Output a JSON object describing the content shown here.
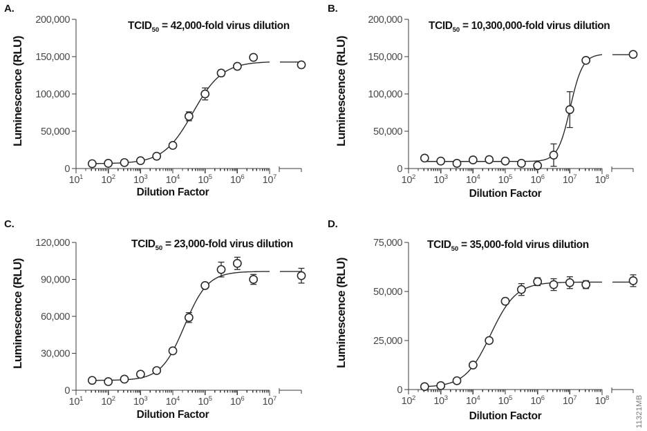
{
  "figure_id": "11321MB",
  "colors": {
    "axis": "#3a3a3c",
    "tick_text": "#48484a",
    "title_text": "#141414",
    "plot": "#2a2a2c",
    "marker_fill": "#ffffff",
    "figure_id_text": "#77787b"
  },
  "chart_data": [
    {
      "type": "scatter",
      "panel_label": "A.",
      "title": {
        "prefix": "TCID",
        "sub": "50",
        "rest": " = 42,000-fold virus dilution"
      },
      "xlabel": "Dilution Factor",
      "ylabel": "Luminescence (RLU)",
      "x_scale": "log",
      "x_tick_base": "10",
      "x_tick_exponents": [
        1,
        2,
        3,
        4,
        5,
        6,
        7
      ],
      "x_axis_break_after": true,
      "ylim": [
        0,
        200000
      ],
      "y_tick_values": [
        0,
        50000,
        100000,
        150000,
        200000
      ],
      "y_tick_labels": [
        "0",
        "50,000",
        "100,000",
        "150,000",
        "200,000"
      ],
      "points": [
        {
          "x": 31.6,
          "y": 6500,
          "e": 0
        },
        {
          "x": 100,
          "y": 7000,
          "e": 0
        },
        {
          "x": 316,
          "y": 8000,
          "e": 0
        },
        {
          "x": 1000,
          "y": 10500,
          "e": 0
        },
        {
          "x": 3162,
          "y": 16500,
          "e": 0
        },
        {
          "x": 10000,
          "y": 31000,
          "e": 0
        },
        {
          "x": 31623,
          "y": 70000,
          "e": 6000
        },
        {
          "x": 100000,
          "y": 100000,
          "e": 8000
        },
        {
          "x": 316228,
          "y": 128000,
          "e": 4000
        },
        {
          "x": 1000000,
          "y": 137000,
          "e": 0
        },
        {
          "x": 3162278,
          "y": 149000,
          "e": 0
        }
      ],
      "control_point": {
        "y": 139000,
        "e": 0
      },
      "curve_fit": {
        "model": "4PL",
        "bottom": 6500,
        "top": 143500,
        "ec50": 42000,
        "hill": 0.95
      }
    },
    {
      "type": "scatter",
      "panel_label": "B.",
      "title": {
        "prefix": "TCID",
        "sub": "50",
        "rest": " = 10,300,000-fold virus dilution"
      },
      "xlabel": "Dilution Factor",
      "ylabel": "Luminescence (RLU)",
      "x_scale": "log",
      "x_tick_base": "10",
      "x_tick_exponents": [
        2,
        3,
        4,
        5,
        6,
        7,
        8
      ],
      "x_axis_break_after": true,
      "ylim": [
        0,
        200000
      ],
      "y_tick_values": [
        0,
        50000,
        100000,
        150000,
        200000
      ],
      "y_tick_labels": [
        "0",
        "50,000",
        "100,000",
        "150,000",
        "200,000"
      ],
      "points": [
        {
          "x": 316,
          "y": 14000,
          "e": 0
        },
        {
          "x": 1000,
          "y": 10000,
          "e": 0
        },
        {
          "x": 3162,
          "y": 7000,
          "e": 0
        },
        {
          "x": 10000,
          "y": 11500,
          "e": 0
        },
        {
          "x": 31623,
          "y": 12000,
          "e": 0
        },
        {
          "x": 100000,
          "y": 10000,
          "e": 0
        },
        {
          "x": 316228,
          "y": 7000,
          "e": 0
        },
        {
          "x": 1000000,
          "y": 4000,
          "e": 0
        },
        {
          "x": 3162278,
          "y": 18000,
          "e": 15000
        },
        {
          "x": 10000000,
          "y": 79000,
          "e": 24000
        },
        {
          "x": 31622777,
          "y": 145000,
          "e": 0
        }
      ],
      "control_point": {
        "y": 153000,
        "e": 0
      },
      "curve_fit": {
        "model": "4PL",
        "bottom": 9500,
        "top": 153500,
        "ec50": 10300000,
        "hill": 2.25
      }
    },
    {
      "type": "scatter",
      "panel_label": "C.",
      "title": {
        "prefix": "TCID",
        "sub": "50",
        "rest": " = 23,000-fold virus dilution"
      },
      "xlabel": "Dilution Factor",
      "ylabel": "Luminescence (RLU)",
      "x_scale": "log",
      "x_tick_base": "10",
      "x_tick_exponents": [
        1,
        2,
        3,
        4,
        5,
        6,
        7
      ],
      "x_axis_break_after": true,
      "ylim": [
        0,
        120000
      ],
      "y_tick_values": [
        0,
        30000,
        60000,
        90000,
        120000
      ],
      "y_tick_labels": [
        "0",
        "30,000",
        "60,000",
        "90,000",
        "120,000"
      ],
      "points": [
        {
          "x": 31.6,
          "y": 8000,
          "e": 0
        },
        {
          "x": 100,
          "y": 7000,
          "e": 0
        },
        {
          "x": 316,
          "y": 9000,
          "e": 0
        },
        {
          "x": 1000,
          "y": 13000,
          "e": 0
        },
        {
          "x": 3162,
          "y": 16000,
          "e": 0
        },
        {
          "x": 10000,
          "y": 32000,
          "e": 0
        },
        {
          "x": 31623,
          "y": 59000,
          "e": 4000
        },
        {
          "x": 100000,
          "y": 85000,
          "e": 2000
        },
        {
          "x": 316228,
          "y": 98000,
          "e": 6000
        },
        {
          "x": 1000000,
          "y": 103000,
          "e": 5000
        },
        {
          "x": 3162278,
          "y": 90000,
          "e": 4000
        }
      ],
      "control_point": {
        "y": 93000,
        "e": 6000
      },
      "curve_fit": {
        "model": "4PL",
        "bottom": 8000,
        "top": 96500,
        "ec50": 23000,
        "hill": 1.2
      }
    },
    {
      "type": "scatter",
      "panel_label": "D.",
      "title": {
        "prefix": "TCID",
        "sub": "50",
        "rest": " = 35,000-fold virus dilution"
      },
      "xlabel": "Dilution Factor",
      "ylabel": "Luminescence (RLU)",
      "x_scale": "log",
      "x_tick_base": "10",
      "x_tick_exponents": [
        2,
        3,
        4,
        5,
        6,
        7,
        8
      ],
      "x_axis_break_after": true,
      "ylim": [
        0,
        75000
      ],
      "y_tick_values": [
        0,
        25000,
        50000,
        75000
      ],
      "y_tick_labels": [
        "0",
        "25,000",
        "50,000",
        "75,000"
      ],
      "points": [
        {
          "x": 316,
          "y": 1500,
          "e": 0
        },
        {
          "x": 1000,
          "y": 2000,
          "e": 0
        },
        {
          "x": 3162,
          "y": 4500,
          "e": 0
        },
        {
          "x": 10000,
          "y": 12500,
          "e": 0
        },
        {
          "x": 31623,
          "y": 25000,
          "e": 0
        },
        {
          "x": 100000,
          "y": 45000,
          "e": 0
        },
        {
          "x": 316228,
          "y": 51000,
          "e": 3000
        },
        {
          "x": 1000000,
          "y": 55000,
          "e": 2000
        },
        {
          "x": 3162278,
          "y": 53500,
          "e": 3000
        },
        {
          "x": 10000000,
          "y": 54500,
          "e": 3000
        },
        {
          "x": 31622777,
          "y": 53500,
          "e": 2000
        }
      ],
      "control_point": {
        "y": 55500,
        "e": 3000
      },
      "curve_fit": {
        "model": "4PL",
        "bottom": 1200,
        "top": 54800,
        "ec50": 35000,
        "hill": 1.1
      }
    }
  ]
}
